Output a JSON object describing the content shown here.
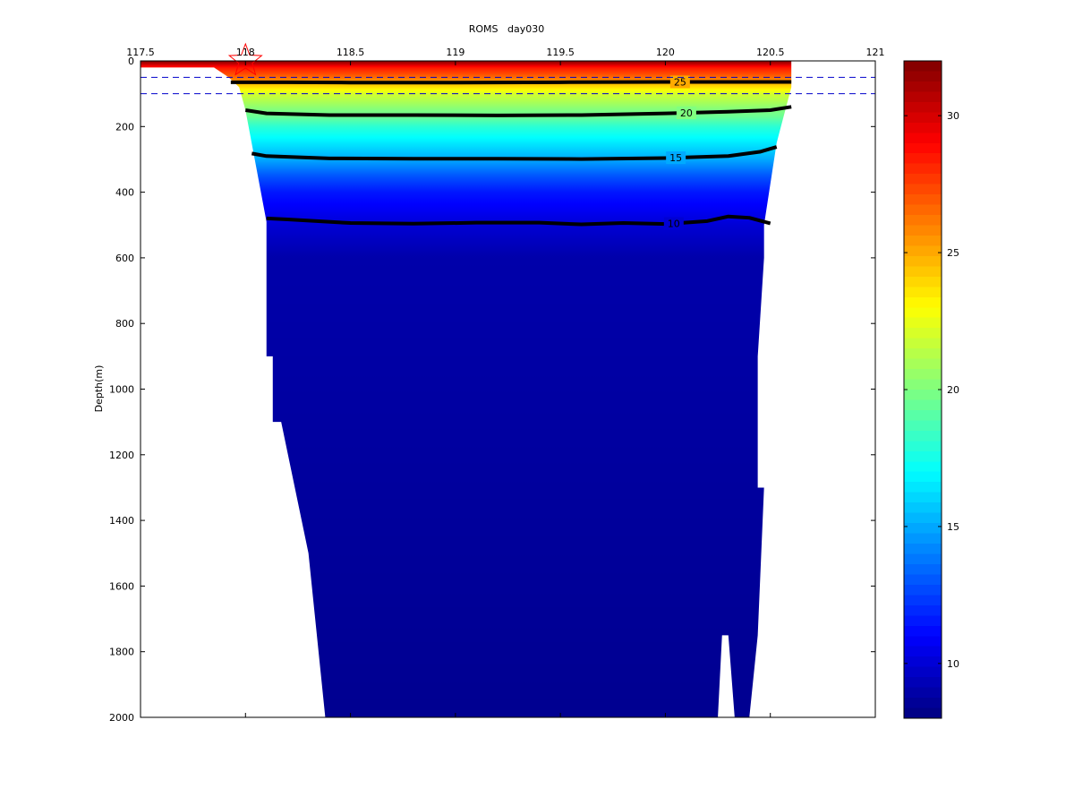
{
  "chart_data": {
    "type": "section",
    "title": "ROMS   day030",
    "ylabel": "Depth(m)",
    "xlabel": "",
    "xlim": [
      117.5,
      121
    ],
    "ylim": [
      0,
      2000
    ],
    "y_reversed": true,
    "x_ticks": [
      117.5,
      118,
      118.5,
      119,
      119.5,
      120,
      120.5,
      121
    ],
    "x_tick_labels": [
      "117.5",
      "118",
      "118.5",
      "119",
      "119.5",
      "120",
      "120.5",
      "121"
    ],
    "y_ticks": [
      0,
      200,
      400,
      600,
      800,
      1000,
      1200,
      1400,
      1600,
      1800,
      2000
    ],
    "y_tick_labels": [
      "0",
      "200",
      "400",
      "600",
      "800",
      "1000",
      "1200",
      "1400",
      "1600",
      "1800",
      "2000"
    ],
    "colormap": "jet",
    "color_limits": [
      8,
      32
    ],
    "colorbar_ticks": [
      10,
      15,
      20,
      25,
      30
    ],
    "colorbar_tick_labels": [
      "10",
      "15",
      "20",
      "25",
      "30"
    ],
    "temperature_profile": {
      "depth": [
        0,
        20,
        50,
        65,
        100,
        150,
        170,
        200,
        250,
        300,
        350,
        400,
        450,
        500,
        600,
        2000
      ],
      "value": [
        32,
        28.5,
        26.5,
        25,
        22,
        20,
        19.5,
        18,
        16.5,
        15,
        13,
        11.5,
        10.8,
        10,
        9.0,
        8.4
      ]
    },
    "contours": [
      {
        "level": 25,
        "label": "25",
        "label_x": 120.07,
        "x": [
          117.93,
          118.2,
          118.5,
          119,
          119.5,
          120,
          120.3,
          120.5,
          120.6
        ],
        "y": [
          65,
          65,
          66,
          66,
          65,
          64,
          64,
          64,
          64
        ]
      },
      {
        "level": 20,
        "label": "20",
        "label_x": 120.1,
        "x": [
          118,
          118.1,
          118.4,
          118.8,
          119.2,
          119.6,
          120,
          120.3,
          120.5,
          120.6
        ],
        "y": [
          150,
          160,
          165,
          165,
          166,
          165,
          160,
          155,
          150,
          140
        ]
      },
      {
        "level": 15,
        "label": "15",
        "label_x": 120.05,
        "x": [
          118.03,
          118.1,
          118.4,
          118.8,
          119.2,
          119.6,
          120,
          120.3,
          120.45,
          120.53
        ],
        "y": [
          282,
          290,
          297,
          298,
          298,
          299,
          296,
          290,
          277,
          262
        ]
      },
      {
        "level": 10,
        "label": "10",
        "label_x": 120.04,
        "x": [
          118.1,
          118.2,
          118.5,
          118.8,
          119.1,
          119.4,
          119.6,
          119.8,
          120.0,
          120.2,
          120.3,
          120.4,
          120.5
        ],
        "y": [
          480,
          483,
          494,
          496,
          493,
          493,
          498,
          494,
          497,
          488,
          474,
          478,
          495
        ]
      }
    ],
    "bathymetry_left": {
      "x": [
        117.5,
        117.85,
        117.92,
        117.97,
        118.0,
        118.1,
        118.1,
        118.13,
        118.13,
        118.17,
        118.3,
        118.38
      ],
      "y": [
        20,
        20,
        50,
        80,
        150,
        490,
        900,
        900,
        1100,
        1100,
        1500,
        2000
      ]
    },
    "bathymetry_right": {
      "x": [
        120.6,
        120.6,
        120.53,
        120.47,
        120.47,
        120.44,
        120.44,
        120.47,
        120.44,
        120.4,
        120.33,
        120.3,
        120.27,
        120.25
      ],
      "y": [
        0,
        80,
        250,
        500,
        600,
        900,
        1300,
        1300,
        1750,
        2000,
        2000,
        1750,
        1750,
        2000
      ]
    },
    "reference_lines": [
      {
        "style": "dashed",
        "color": "#0000cc",
        "depth": 50
      },
      {
        "style": "dashed",
        "color": "#0000cc",
        "depth": 100
      }
    ],
    "marker": {
      "shape": "star",
      "color": "#ff0000",
      "x": 118.0,
      "y": 0
    }
  }
}
